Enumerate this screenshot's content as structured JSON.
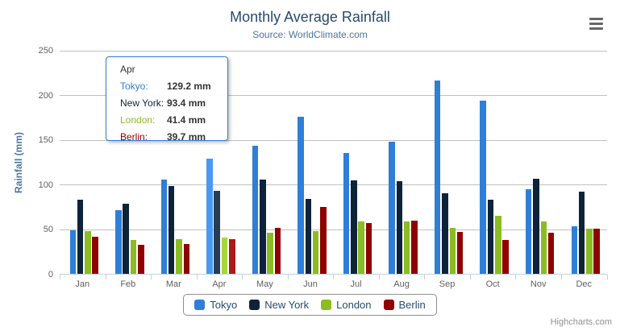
{
  "title": "Monthly Average Rainfall",
  "subtitle": "Source: WorldClimate.com",
  "credits": "Highcharts.com",
  "menu_icon": "hamburger-menu-icon",
  "colors": {
    "title": "#274b6d",
    "subtitle": "#4d759e",
    "axis_title": "#4d759e",
    "tick_label": "#606060",
    "grid": "#c0c0c0",
    "axis_line": "#c0d0e0",
    "legend_text": "#274b6d",
    "legend_border": "#909090",
    "credits": "#909090",
    "menu_icon_color": "#666666"
  },
  "chart_data": {
    "type": "bar",
    "title": "Monthly Average Rainfall",
    "subtitle": "Source: WorldClimate.com",
    "categories": [
      "Jan",
      "Feb",
      "Mar",
      "Apr",
      "May",
      "Jun",
      "Jul",
      "Aug",
      "Sep",
      "Oct",
      "Nov",
      "Dec"
    ],
    "series": [
      {
        "name": "Tokyo",
        "color": "#2f7ed8",
        "values": [
          49.9,
          71.5,
          106.4,
          129.2,
          144.0,
          176.0,
          135.6,
          148.5,
          216.4,
          194.1,
          95.6,
          54.4
        ]
      },
      {
        "name": "New York",
        "color": "#0d233a",
        "values": [
          83.6,
          78.8,
          98.5,
          93.4,
          106.0,
          84.5,
          105.0,
          104.3,
          91.2,
          83.5,
          106.6,
          92.3
        ]
      },
      {
        "name": "London",
        "color": "#8bbc21",
        "values": [
          48.9,
          38.8,
          39.3,
          41.4,
          47.0,
          48.3,
          59.0,
          59.6,
          52.4,
          65.2,
          59.3,
          51.2
        ]
      },
      {
        "name": "Berlin",
        "color": "#910000",
        "values": [
          42.4,
          33.2,
          34.5,
          39.7,
          52.6,
          75.5,
          57.4,
          60.4,
          47.6,
          39.1,
          46.8,
          51.1
        ]
      }
    ],
    "xlabel": "",
    "ylabel": "Rainfall (mm)",
    "ylim": [
      0,
      250
    ],
    "yticks": [
      0,
      50,
      100,
      150,
      200,
      250
    ],
    "value_suffix": " mm",
    "grid": true,
    "legend_position": "bottom",
    "hover_category": "Apr"
  },
  "tooltip": {
    "header": "Apr",
    "border_color": "#2f7ed8",
    "rows": [
      {
        "label": "Tokyo:",
        "value": "129.2 mm",
        "color": "#2f7ed8"
      },
      {
        "label": "New York:",
        "value": "93.4 mm",
        "color": "#0d233a"
      },
      {
        "label": "London:",
        "value": "41.4 mm",
        "color": "#8bbc21"
      },
      {
        "label": "Berlin:",
        "value": "39.7 mm",
        "color": "#910000"
      }
    ]
  }
}
